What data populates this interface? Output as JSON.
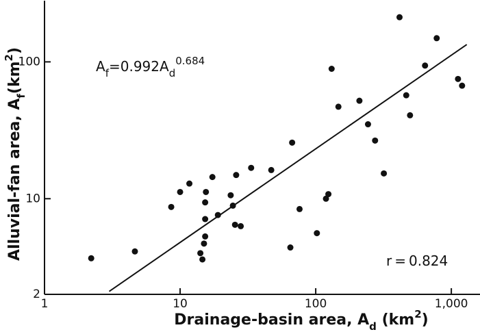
{
  "chart_data": {
    "type": "scatter",
    "log_x": true,
    "log_y": true,
    "xlim": [
      1,
      1500
    ],
    "ylim": [
      2,
      280
    ],
    "xticks": [
      1,
      10,
      100,
      {
        "value": 1000,
        "label": "1,000"
      }
    ],
    "yticks": [
      2,
      10,
      100
    ],
    "xlabel_parts": [
      {
        "text": "Drainage-basin area, A"
      },
      {
        "text": "d",
        "sub": true
      },
      {
        "text": "   (km"
      },
      {
        "text": "2",
        "sup": true
      },
      {
        "text": ")"
      }
    ],
    "ylabel_parts": [
      {
        "text": "Alluvial-fan area, A"
      },
      {
        "text": "f",
        "sub": true
      },
      {
        "text": "(km"
      },
      {
        "text": "2",
        "sup": true
      },
      {
        "text": ")"
      }
    ],
    "fit": {
      "y": "A",
      "y_sub": "f",
      "equals": "=",
      "coefficient": 0.992,
      "x": "A",
      "x_sub": "d",
      "exponent": 0.684,
      "x_range": [
        3,
        1300
      ]
    },
    "r_label": {
      "symbol": "r",
      "equals": "=",
      "value": 0.824
    },
    "color": "#111111",
    "x": [
      4.64,
      2.21,
      8.6,
      10,
      11.7,
      17.3,
      15.5,
      15.3,
      15.3,
      19,
      15.3,
      15,
      14.1,
      14.6,
      24.5,
      23.6,
      25.4,
      28,
      25.9,
      33.4,
      47,
      67,
      76,
      65,
      102,
      119,
      124,
      147,
      131,
      210,
      243,
      274,
      318,
      415,
      465,
      496,
      640,
      780,
      1120,
      1200
    ],
    "values": [
      4.12,
      3.67,
      8.7,
      11.2,
      12.9,
      14.4,
      11.2,
      9.4,
      7.1,
      7.6,
      5.3,
      4.7,
      4.0,
      3.6,
      8.9,
      10.6,
      6.45,
      6.3,
      14.9,
      16.8,
      16.2,
      25.7,
      8.4,
      4.4,
      5.6,
      10,
      10.8,
      47,
      89,
      52,
      35,
      26.6,
      15.3,
      212,
      57,
      40.7,
      94,
      149,
      75,
      67
    ]
  }
}
